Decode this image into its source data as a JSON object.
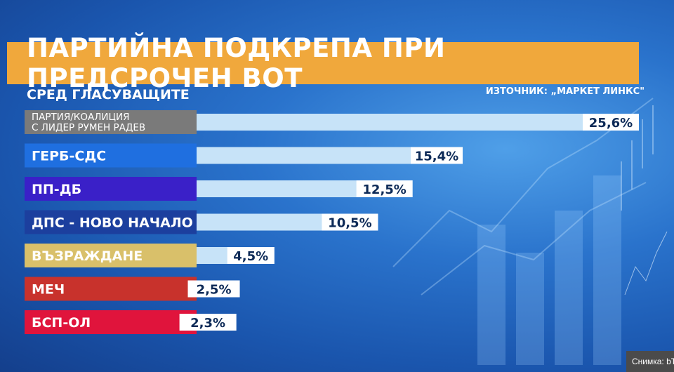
{
  "title": "ПАРТИЙНА ПОДКРЕПА ПРИ ПРЕДСРОЧЕН ВОТ",
  "subtitle": "СРЕД ГЛАСУВАЩИТЕ",
  "source": "ИЗТОЧНИК: „МАРКЕТ ЛИНКС\"",
  "credit": "Снимка: bTV",
  "colors": {
    "title_bg": "#f0a83c",
    "bar": "#c7e3f8",
    "value_bg": "#ffffff",
    "value_text": "#0d2a57"
  },
  "chart_data": {
    "type": "bar",
    "orientation": "horizontal",
    "categories": [
      [
        "ПАРТИЯ/КОАЛИЦИЯ",
        "С ЛИДЕР РУМЕН РАДЕВ"
      ],
      [
        "ГЕРБ-СДС"
      ],
      [
        "ПП-ДБ"
      ],
      [
        "ДПС - НОВО НАЧАЛО"
      ],
      [
        "ВЪЗРАЖДАНЕ"
      ],
      [
        "МЕЧ"
      ],
      [
        "БСП-ОЛ"
      ]
    ],
    "values": [
      25.6,
      15.4,
      12.5,
      10.5,
      4.5,
      2.5,
      2.3
    ],
    "value_labels": [
      "25,6%",
      "15,4%",
      "12,5%",
      "10,5%",
      "4,5%",
      "2,5%",
      "2,3%"
    ],
    "category_colors": [
      "#7a7a7a",
      "#1f6fe0",
      "#3a20c8",
      "#1c3f9e",
      "#d9c06a",
      "#c8322c",
      "#e0143c"
    ]
  }
}
